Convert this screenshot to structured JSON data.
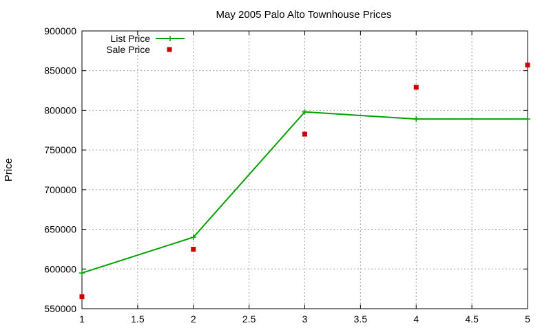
{
  "chart_data": {
    "type": "line",
    "title": "May 2005 Palo Alto Townhouse Prices",
    "xlabel": "",
    "ylabel": "Price",
    "xlim": [
      1,
      5
    ],
    "ylim": [
      550000,
      900000
    ],
    "xticks": [
      "1",
      "1.5",
      "2",
      "2.5",
      "3",
      "3.5",
      "4",
      "4.5",
      "5"
    ],
    "yticks": [
      "550000",
      "600000",
      "650000",
      "700000",
      "750000",
      "800000",
      "850000",
      "900000"
    ],
    "grid": true,
    "legend_position": "top-left",
    "series": [
      {
        "name": "List Price",
        "style": "linespoints",
        "color": "#00a000",
        "x": [
          1,
          2,
          3,
          4,
          5
        ],
        "y": [
          595000,
          640000,
          798000,
          789000,
          789000
        ]
      },
      {
        "name": "Sale Price",
        "style": "points",
        "color": "#cc0000",
        "x": [
          1,
          2,
          3,
          4,
          5
        ],
        "y": [
          565000,
          625000,
          770000,
          829000,
          857000
        ]
      }
    ]
  }
}
